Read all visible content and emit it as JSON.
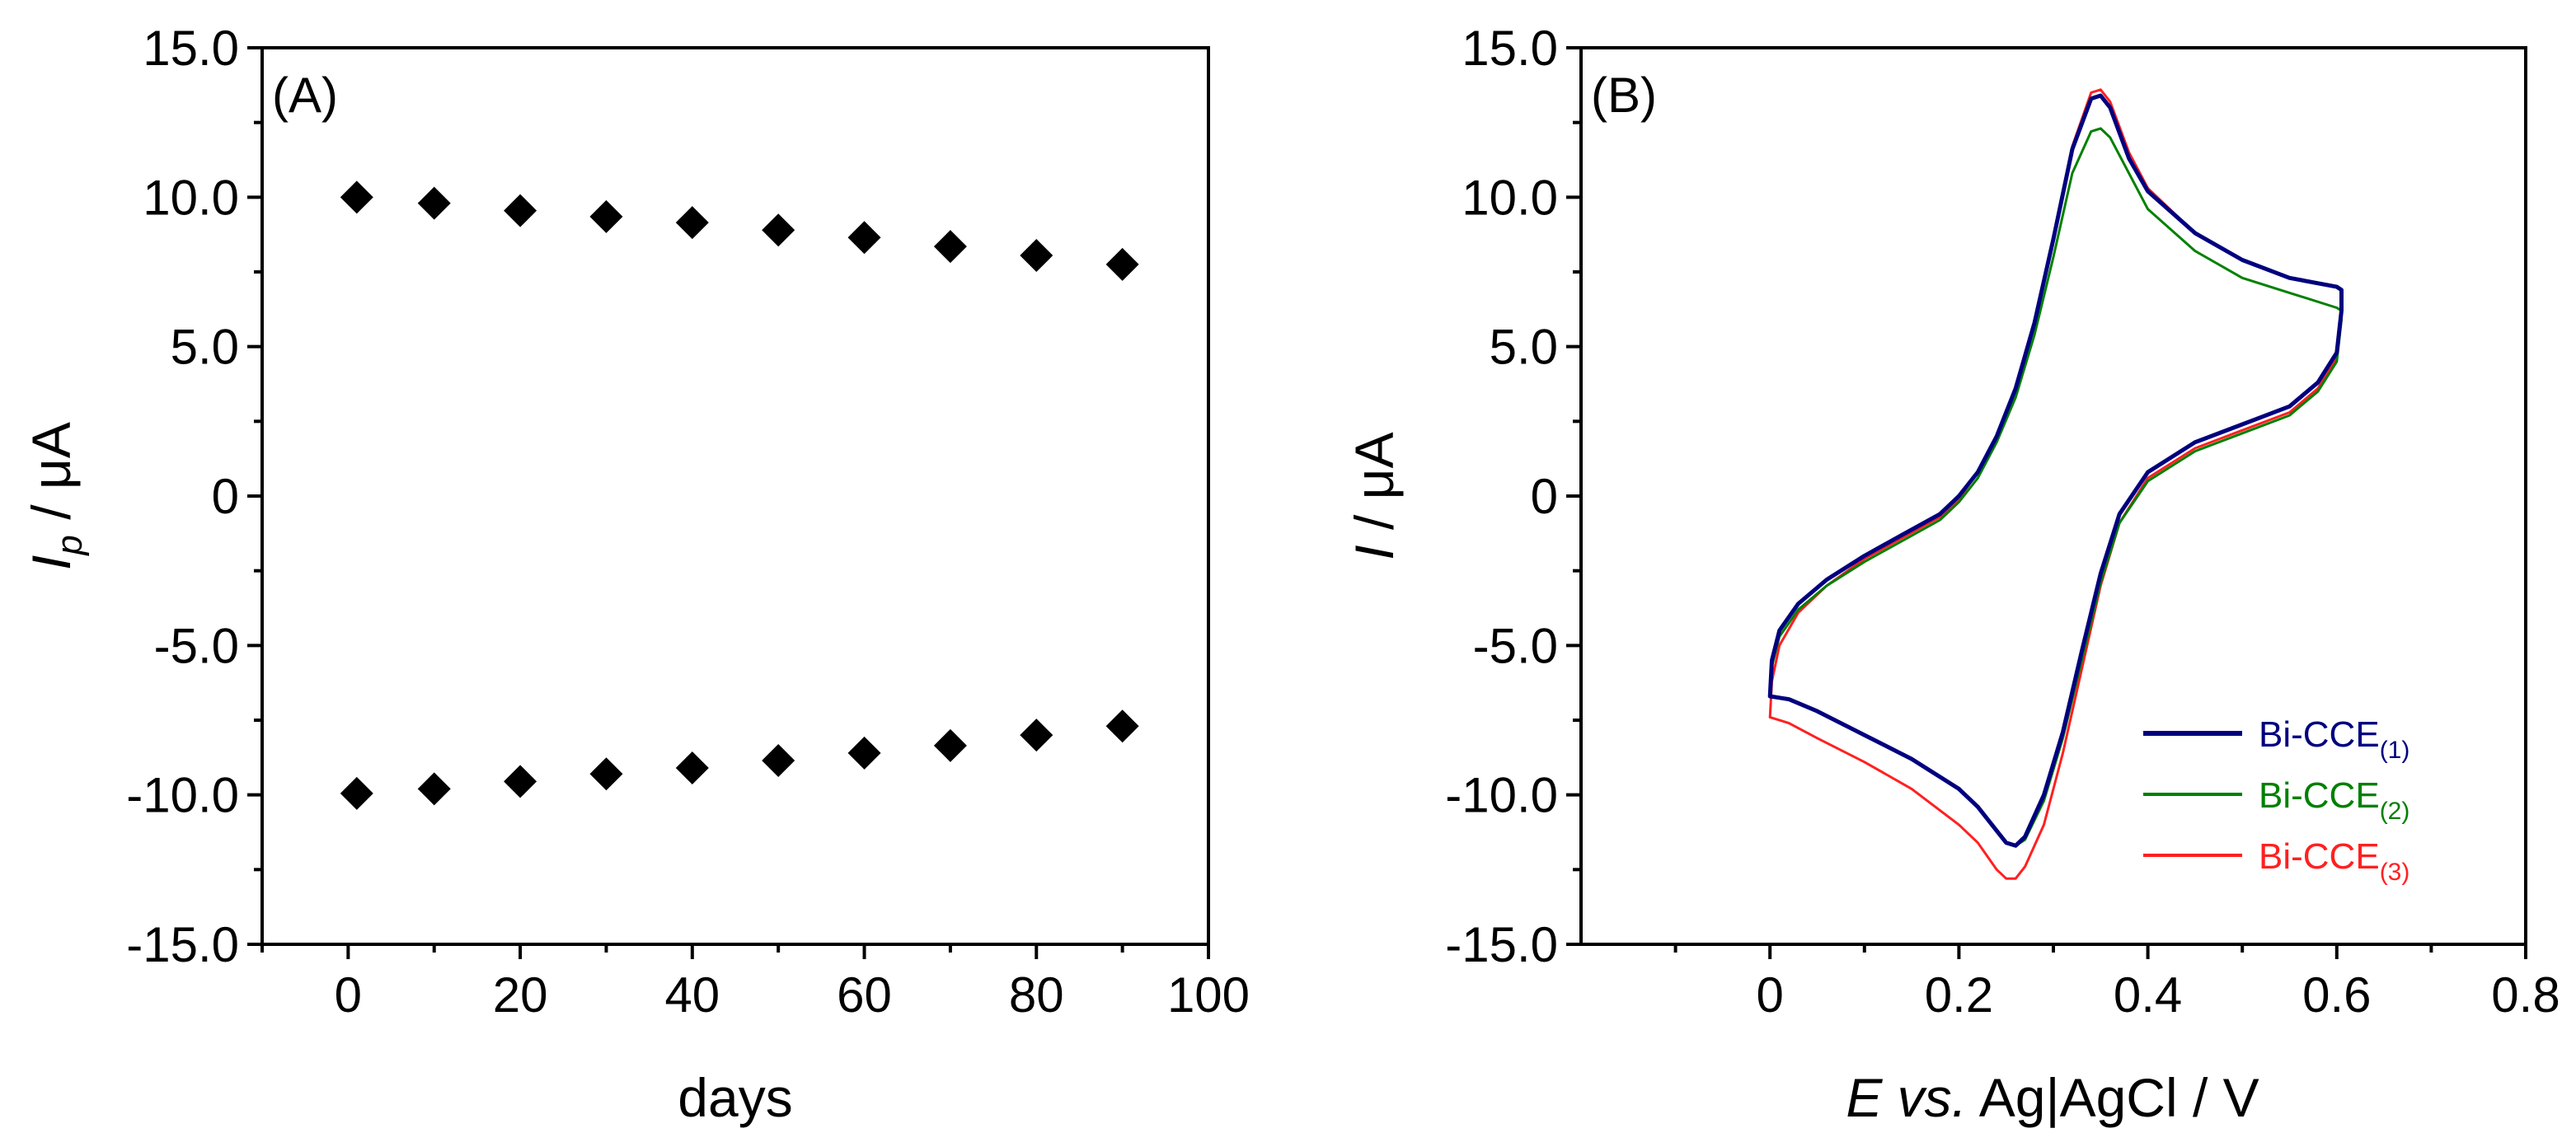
{
  "chart_data": [
    {
      "type": "scatter",
      "panel_label": "(A)",
      "xlabel": "days",
      "ylabel_main": "I",
      "ylabel_sub": "p",
      "ylabel_unit": " / μA",
      "xlim": [
        -10,
        100
      ],
      "ylim": [
        -15,
        15
      ],
      "x_ticks": [
        0,
        20,
        40,
        60,
        80,
        100
      ],
      "x_tick_labels": [
        "0",
        "20",
        "40",
        "60",
        "80",
        "100"
      ],
      "y_ticks": [
        -15,
        -10,
        -5,
        0,
        5,
        10,
        15
      ],
      "y_tick_labels": [
        "-15.0",
        "-10.0",
        "-5.0",
        "0",
        "5.0",
        "10.0",
        "15.0"
      ],
      "marker": "diamond",
      "marker_color": "#000000",
      "series": [
        {
          "name": "anodic",
          "x": [
            1,
            10,
            20,
            30,
            40,
            50,
            60,
            70,
            80,
            90
          ],
          "y": [
            10.0,
            9.8,
            9.55,
            9.35,
            9.15,
            8.9,
            8.65,
            8.35,
            8.05,
            7.75
          ]
        },
        {
          "name": "cathodic",
          "x": [
            1,
            10,
            20,
            30,
            40,
            50,
            60,
            70,
            80,
            90
          ],
          "y": [
            -9.95,
            -9.8,
            -9.55,
            -9.3,
            -9.1,
            -8.85,
            -8.6,
            -8.35,
            -8.0,
            -7.7
          ]
        }
      ]
    },
    {
      "type": "line",
      "panel_label": "(B)",
      "xlabel_italic": "E vs.",
      "xlabel_rest": " Ag|AgCl / V",
      "ylabel_main": "I",
      "ylabel_unit": " / μA",
      "xlim": [
        -0.2,
        0.8
      ],
      "ylim": [
        -15,
        15
      ],
      "x_ticks": [
        0,
        0.2,
        0.4,
        0.6,
        0.8
      ],
      "x_tick_labels": [
        "0",
        "0.2",
        "0.4",
        "0.6",
        "0.8"
      ],
      "y_ticks": [
        -15,
        -10,
        -5,
        0,
        5,
        10,
        15
      ],
      "y_tick_labels": [
        "-15.0",
        "-10.0",
        "-5.0",
        "0",
        "5.0",
        "10.0",
        "15.0"
      ],
      "legend_position": "bottom-right",
      "series": [
        {
          "name": "Bi-CCE",
          "sub": "(1)",
          "color": "#00007f",
          "width": 5,
          "x": [
            0.0,
            0.002,
            0.01,
            0.03,
            0.06,
            0.1,
            0.14,
            0.18,
            0.2,
            0.22,
            0.24,
            0.26,
            0.28,
            0.3,
            0.32,
            0.34,
            0.35,
            0.36,
            0.38,
            0.4,
            0.45,
            0.5,
            0.55,
            0.6,
            0.605,
            0.605,
            0.6,
            0.58,
            0.55,
            0.5,
            0.45,
            0.4,
            0.37,
            0.35,
            0.33,
            0.31,
            0.29,
            0.27,
            0.26,
            0.25,
            0.24,
            0.22,
            0.2,
            0.15,
            0.1,
            0.05,
            0.02,
            0.0,
            0.0
          ],
          "y": [
            -6.7,
            -5.5,
            -4.5,
            -3.6,
            -2.8,
            -2.0,
            -1.3,
            -0.6,
            0.0,
            0.8,
            2.0,
            3.6,
            5.8,
            8.6,
            11.6,
            13.3,
            13.4,
            13.0,
            11.3,
            10.2,
            8.8,
            7.9,
            7.3,
            7.0,
            6.9,
            6.2,
            4.8,
            3.8,
            3.0,
            2.4,
            1.8,
            0.8,
            -0.6,
            -2.6,
            -5.2,
            -7.9,
            -10.0,
            -11.4,
            -11.7,
            -11.6,
            -11.2,
            -10.4,
            -9.8,
            -8.8,
            -8.0,
            -7.2,
            -6.8,
            -6.7,
            -6.7
          ]
        },
        {
          "name": "Bi-CCE",
          "sub": "(2)",
          "color": "#008000",
          "width": 3,
          "x": [
            0.0,
            0.002,
            0.01,
            0.03,
            0.06,
            0.1,
            0.14,
            0.18,
            0.2,
            0.22,
            0.24,
            0.26,
            0.28,
            0.3,
            0.32,
            0.34,
            0.35,
            0.36,
            0.38,
            0.4,
            0.45,
            0.5,
            0.55,
            0.6,
            0.605,
            0.605,
            0.6,
            0.58,
            0.55,
            0.5,
            0.45,
            0.4,
            0.37,
            0.35,
            0.33,
            0.31,
            0.29,
            0.27,
            0.26,
            0.25,
            0.24,
            0.22,
            0.2,
            0.15,
            0.1,
            0.05,
            0.02,
            0.0,
            0.0
          ],
          "y": [
            -6.7,
            -5.7,
            -4.7,
            -3.8,
            -3.0,
            -2.2,
            -1.5,
            -0.8,
            -0.2,
            0.6,
            1.8,
            3.3,
            5.4,
            8.0,
            10.8,
            12.2,
            12.3,
            12.0,
            10.8,
            9.6,
            8.2,
            7.3,
            6.8,
            6.3,
            6.2,
            5.9,
            4.5,
            3.5,
            2.7,
            2.1,
            1.5,
            0.5,
            -0.9,
            -2.9,
            -5.5,
            -8.1,
            -10.2,
            -11.5,
            -11.7,
            -11.6,
            -11.2,
            -10.4,
            -9.8,
            -8.8,
            -8.0,
            -7.2,
            -6.8,
            -6.7,
            -6.7
          ]
        },
        {
          "name": "Bi-CCE",
          "sub": "(3)",
          "color": "#ff2020",
          "width": 3,
          "x": [
            0.0,
            0.002,
            0.01,
            0.03,
            0.06,
            0.1,
            0.14,
            0.18,
            0.2,
            0.22,
            0.24,
            0.26,
            0.28,
            0.3,
            0.32,
            0.34,
            0.35,
            0.36,
            0.38,
            0.4,
            0.45,
            0.5,
            0.55,
            0.6,
            0.605,
            0.605,
            0.6,
            0.58,
            0.55,
            0.5,
            0.45,
            0.4,
            0.37,
            0.35,
            0.33,
            0.31,
            0.29,
            0.27,
            0.26,
            0.25,
            0.24,
            0.22,
            0.2,
            0.15,
            0.1,
            0.05,
            0.02,
            0.0,
            0.0
          ],
          "y": [
            -7.4,
            -6.2,
            -5.0,
            -3.9,
            -3.0,
            -2.1,
            -1.4,
            -0.7,
            -0.1,
            0.8,
            2.0,
            3.6,
            5.8,
            8.6,
            11.7,
            13.5,
            13.6,
            13.2,
            11.5,
            10.3,
            8.8,
            7.9,
            7.3,
            7.0,
            6.9,
            6.0,
            4.6,
            3.6,
            2.8,
            2.2,
            1.6,
            0.6,
            -0.9,
            -3.0,
            -5.8,
            -8.6,
            -11.0,
            -12.4,
            -12.8,
            -12.8,
            -12.5,
            -11.6,
            -11.0,
            -9.8,
            -8.9,
            -8.1,
            -7.6,
            -7.4,
            -7.4
          ]
        }
      ]
    }
  ]
}
